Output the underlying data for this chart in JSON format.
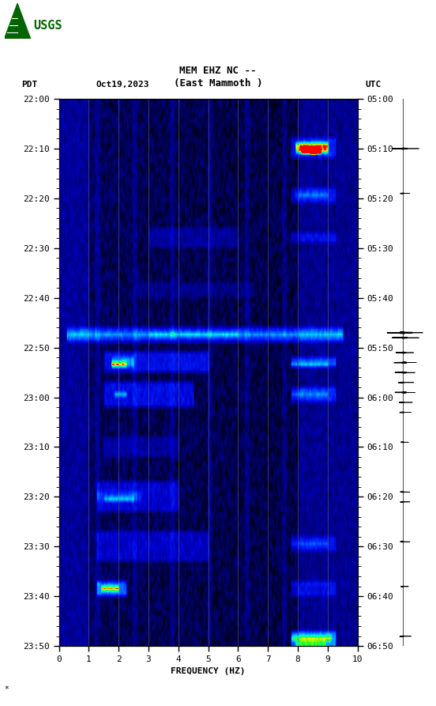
{
  "title_line1": "MEM EHZ NC --",
  "title_line2": "(East Mammoth )",
  "date_label": "Oct19,2023",
  "timezone_left": "PDT",
  "timezone_right": "UTC",
  "xlabel": "FREQUENCY (HZ)",
  "freq_min": 0,
  "freq_max": 10,
  "freq_ticks": [
    0,
    1,
    2,
    3,
    4,
    5,
    6,
    7,
    8,
    9,
    10
  ],
  "time_ticks_pdt": [
    "22:00",
    "22:10",
    "22:20",
    "22:30",
    "22:40",
    "22:50",
    "23:00",
    "23:10",
    "23:20",
    "23:30",
    "23:40",
    "23:50"
  ],
  "time_ticks_utc": [
    "05:00",
    "05:10",
    "05:20",
    "05:30",
    "05:40",
    "05:50",
    "06:00",
    "06:10",
    "06:20",
    "06:30",
    "06:40",
    "06:50"
  ],
  "vertical_lines_freq": [
    1,
    2,
    3,
    4,
    5,
    6,
    7,
    8,
    9
  ],
  "vertical_line_color": "#808080",
  "font_size_title": 9,
  "font_size_labels": 8,
  "font_size_ticks": 8,
  "figsize": [
    5.52,
    8.93
  ],
  "dpi": 100
}
